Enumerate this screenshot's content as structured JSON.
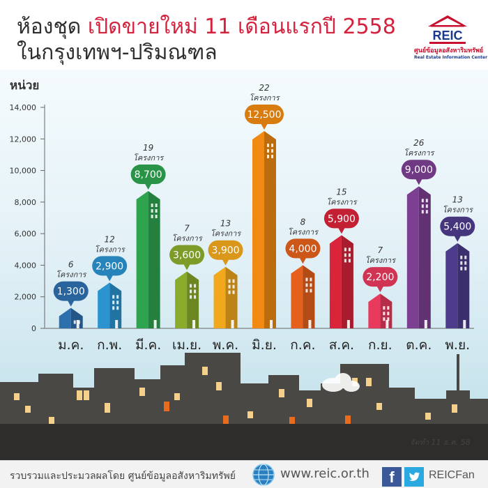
{
  "header": {
    "title_part1": "ห้องชุด",
    "title_part2": "เปิดขายใหม่ 11  เดือนแรกปี 2558",
    "title_line2": "ในกรุงเทพฯ-ปริมณฑล"
  },
  "logo": {
    "name": "REIC",
    "name_th": "ศูนย์ข้อมูลอสังหาริมทรัพย์",
    "name_en": "Real Estate Information Center"
  },
  "chart_data": {
    "type": "bar",
    "ylabel": "หน่วย",
    "ylim": [
      0,
      14000
    ],
    "yticks": [
      "0",
      "2,000",
      "4,000",
      "6,000",
      "8,000",
      "10,000",
      "12,000",
      "14,000"
    ],
    "categories": [
      "ม.ค.",
      "ก.พ.",
      "มี.ค.",
      "เม.ย.",
      "พ.ค.",
      "มิ.ย.",
      "ก.ค.",
      "ส.ค.",
      "ก.ย.",
      "ต.ค.",
      "พ.ย."
    ],
    "values": [
      1300,
      2900,
      8700,
      3600,
      3900,
      12500,
      4000,
      5900,
      2200,
      9000,
      5400
    ],
    "value_labels": [
      "1,300",
      "2,900",
      "8,700",
      "3,600",
      "3,900",
      "12,500",
      "4,000",
      "5,900",
      "2,200",
      "9,000",
      "5,400"
    ],
    "projects": [
      "6",
      "12",
      "19",
      "7",
      "13",
      "22",
      "8",
      "15",
      "7",
      "26",
      "13"
    ],
    "project_unit": "โครงการ",
    "colors": [
      "#2e6fad",
      "#2a93d0",
      "#2ea44f",
      "#8aac2b",
      "#f2a81d",
      "#f08a12",
      "#e4601c",
      "#d9243a",
      "#e83a5c",
      "#7c3f92",
      "#4d3c8c"
    ]
  },
  "footer": {
    "credit": "รวบรวมและประมวลผลโดย ศูนย์ข้อมูลอสังหาริมทรัพย์",
    "url": "www.reic.or.th",
    "social_fb": "f",
    "social_handle": "REICFan",
    "date_note": "จัดทำ 11 ธ.ค. 58"
  },
  "icons": [
    "house-logo-icon",
    "globe-icon",
    "facebook-icon",
    "twitter-bird-icon",
    "cloud-icon"
  ]
}
